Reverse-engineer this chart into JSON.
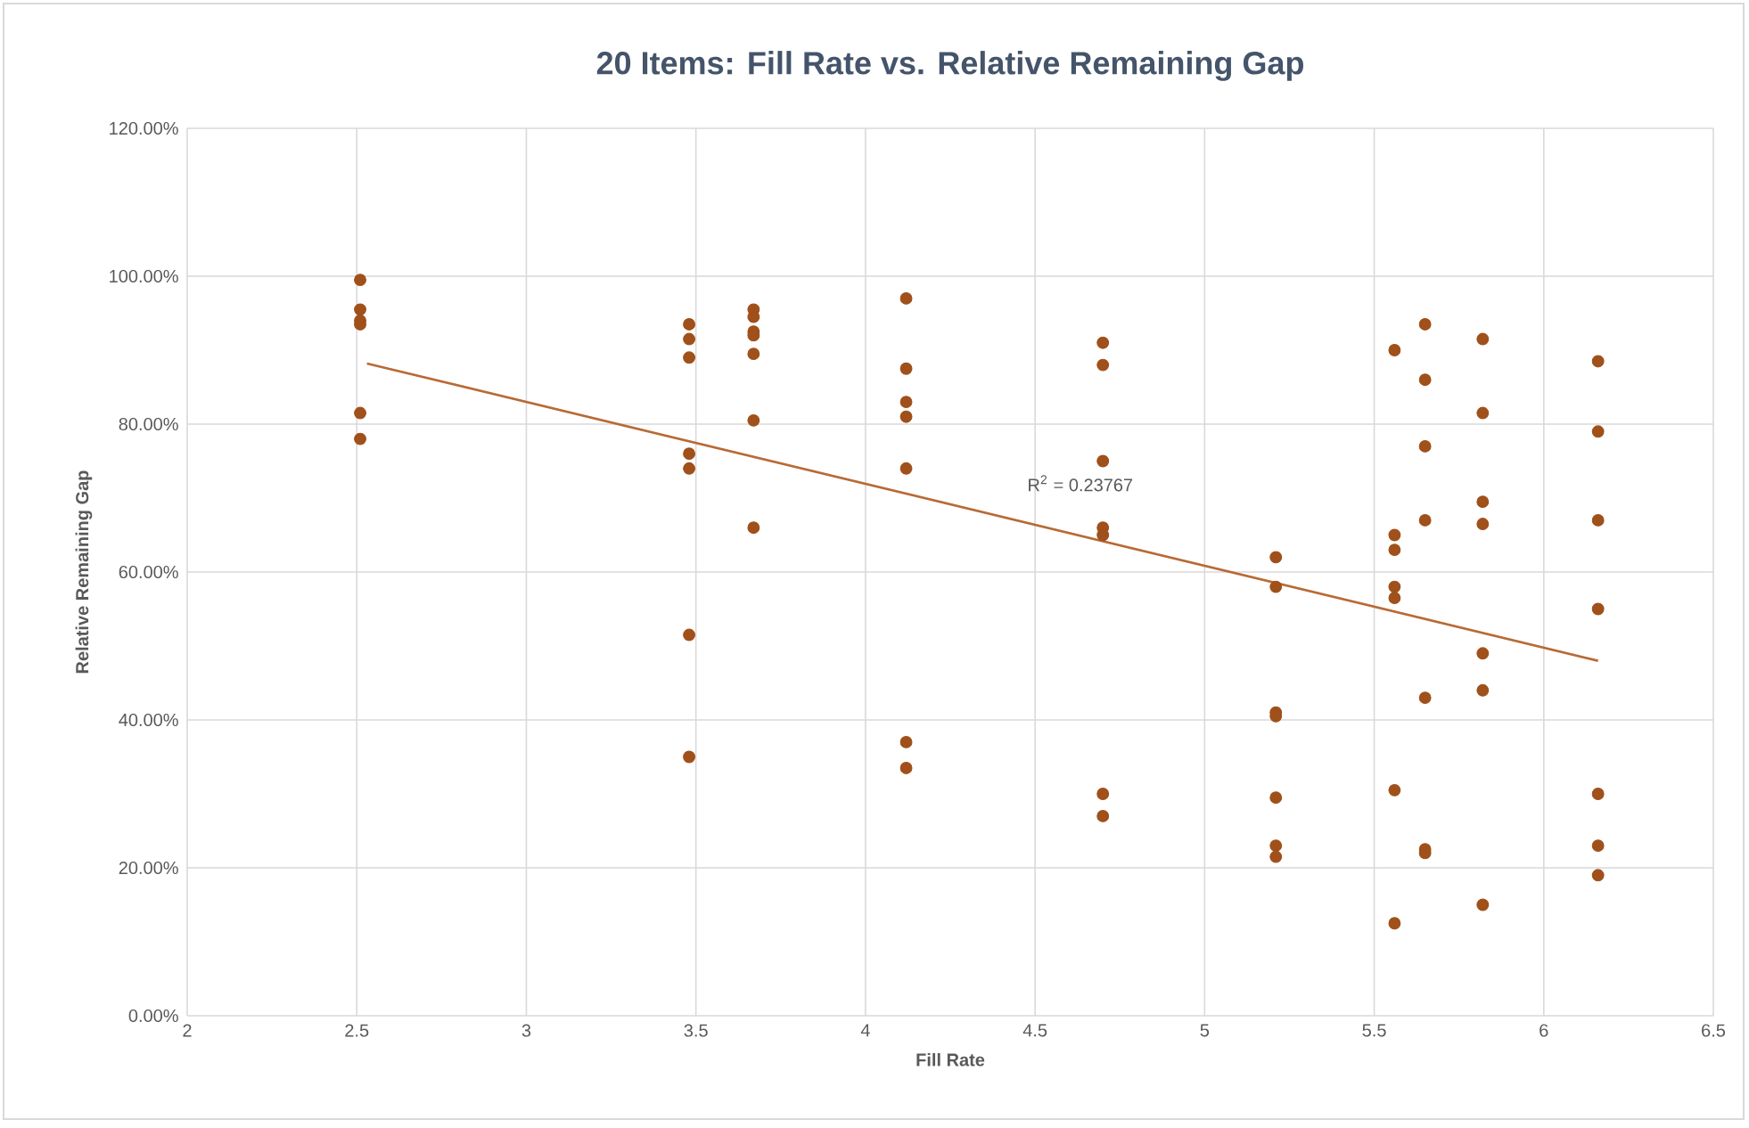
{
  "chart_data": {
    "type": "scatter",
    "title": "20 Items: Fill Rate vs. Relative Remaining Gap",
    "xlabel": "Fill Rate",
    "ylabel": "Relative Remaining Gap",
    "annotations": [
      "R$^{2}$ = 0.23767"
    ],
    "xlim": [
      2,
      6.5
    ],
    "xticks": [
      2,
      2.5,
      3,
      3.5,
      4,
      4.5,
      5,
      5.5,
      6,
      6.5
    ],
    "ylim": [
      0,
      120
    ],
    "yticks": [
      {
        "value": 0,
        "label": "0.00%"
      },
      {
        "value": 20,
        "label": "20.00%"
      },
      {
        "value": 40,
        "label": "40.00%"
      },
      {
        "value": 60,
        "label": "60.00%"
      },
      {
        "value": 80,
        "label": "80.00%"
      },
      {
        "value": 100,
        "label": "100.00%"
      },
      {
        "value": 120,
        "label": "120.00%"
      }
    ],
    "grid": true,
    "marker": "circle",
    "series": [
      {
        "color": "#a0501a",
        "x": [
          2.51,
          2.51,
          2.51,
          2.51,
          2.51,
          2.51,
          3.48,
          3.48,
          3.48,
          3.48,
          3.48,
          3.48,
          3.48,
          3.67,
          3.67,
          3.67,
          3.67,
          3.67,
          3.67,
          3.67,
          4.12,
          4.12,
          4.12,
          4.12,
          4.12,
          4.12,
          4.12,
          4.7,
          4.7,
          4.7,
          4.7,
          4.7,
          4.7,
          4.7,
          5.21,
          5.21,
          5.21,
          5.21,
          5.21,
          5.21,
          5.21,
          5.56,
          5.56,
          5.56,
          5.56,
          5.56,
          5.56,
          5.56,
          5.65,
          5.65,
          5.65,
          5.65,
          5.65,
          5.65,
          5.65,
          5.82,
          5.82,
          5.82,
          5.82,
          5.82,
          5.82,
          5.82,
          6.16,
          6.16,
          6.16,
          6.16,
          6.16,
          6.16,
          6.16
        ],
        "values": [
          99.5,
          95.5,
          94,
          93.5,
          81.5,
          78,
          93.5,
          91.5,
          89,
          76,
          74,
          51.5,
          35,
          95.5,
          94.5,
          92.5,
          92,
          89.5,
          80.5,
          66,
          97,
          87.5,
          83,
          81,
          74,
          37,
          33.5,
          91,
          88,
          75,
          66,
          65,
          30,
          27,
          62,
          58,
          41,
          40.5,
          29.5,
          23,
          21.5,
          90,
          65,
          63,
          58,
          56.5,
          30.5,
          12.5,
          93.5,
          86,
          77,
          67,
          43,
          22.5,
          22,
          91.5,
          81.5,
          69.5,
          66.5,
          49,
          44,
          15,
          88.5,
          79,
          67,
          55,
          30,
          23,
          19
        ]
      },
      {
        "type": "line",
        "marker": "none",
        "color": "#b86a35",
        "x": [
          2.53,
          6.16
        ],
        "values": [
          88.2,
          48
        ]
      }
    ]
  }
}
